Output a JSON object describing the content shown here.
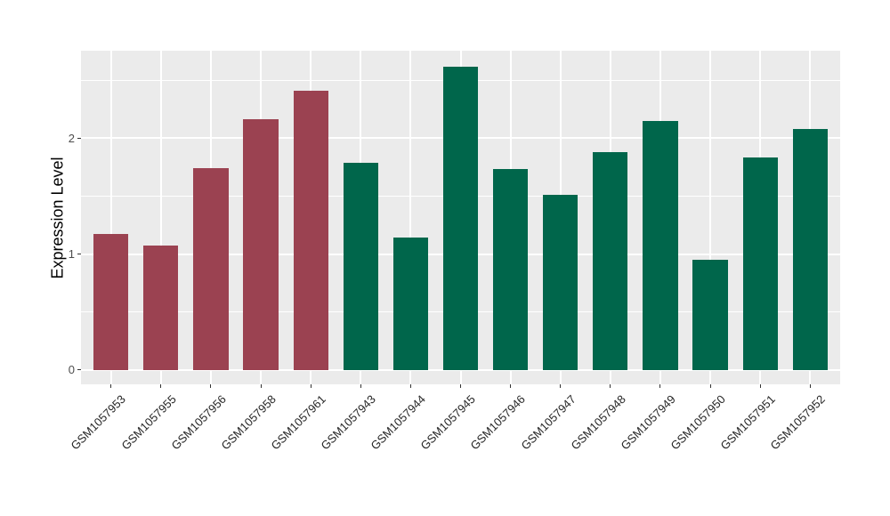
{
  "chart_data": {
    "type": "bar",
    "title": "",
    "ylabel": "Expression Level",
    "xlabel": "",
    "categories": [
      "GSM1057953",
      "GSM1057955",
      "GSM1057956",
      "GSM1057958",
      "GSM1057961",
      "GSM1057943",
      "GSM1057944",
      "GSM1057945",
      "GSM1057946",
      "GSM1057947",
      "GSM1057948",
      "GSM1057949",
      "GSM1057950",
      "GSM1057951",
      "GSM1057952"
    ],
    "values": [
      1.17,
      1.07,
      1.74,
      2.16,
      2.41,
      1.79,
      1.14,
      2.62,
      1.73,
      1.51,
      1.88,
      2.15,
      0.95,
      1.83,
      2.08
    ],
    "bar_groups": [
      0,
      0,
      0,
      0,
      0,
      1,
      1,
      1,
      1,
      1,
      1,
      1,
      1,
      1,
      1
    ],
    "group_colors": [
      "#9B4251",
      "#00664B"
    ],
    "yticks": [
      0,
      1,
      2
    ],
    "yticks_minor": [
      0.5,
      1.5,
      2.5
    ],
    "ylim": [
      -0.125,
      2.755
    ],
    "grid": "on",
    "legend": "none",
    "panel_bg": "#EBEBEB",
    "grid_color": "#FFFFFF",
    "bar_width_fraction": 0.7
  }
}
